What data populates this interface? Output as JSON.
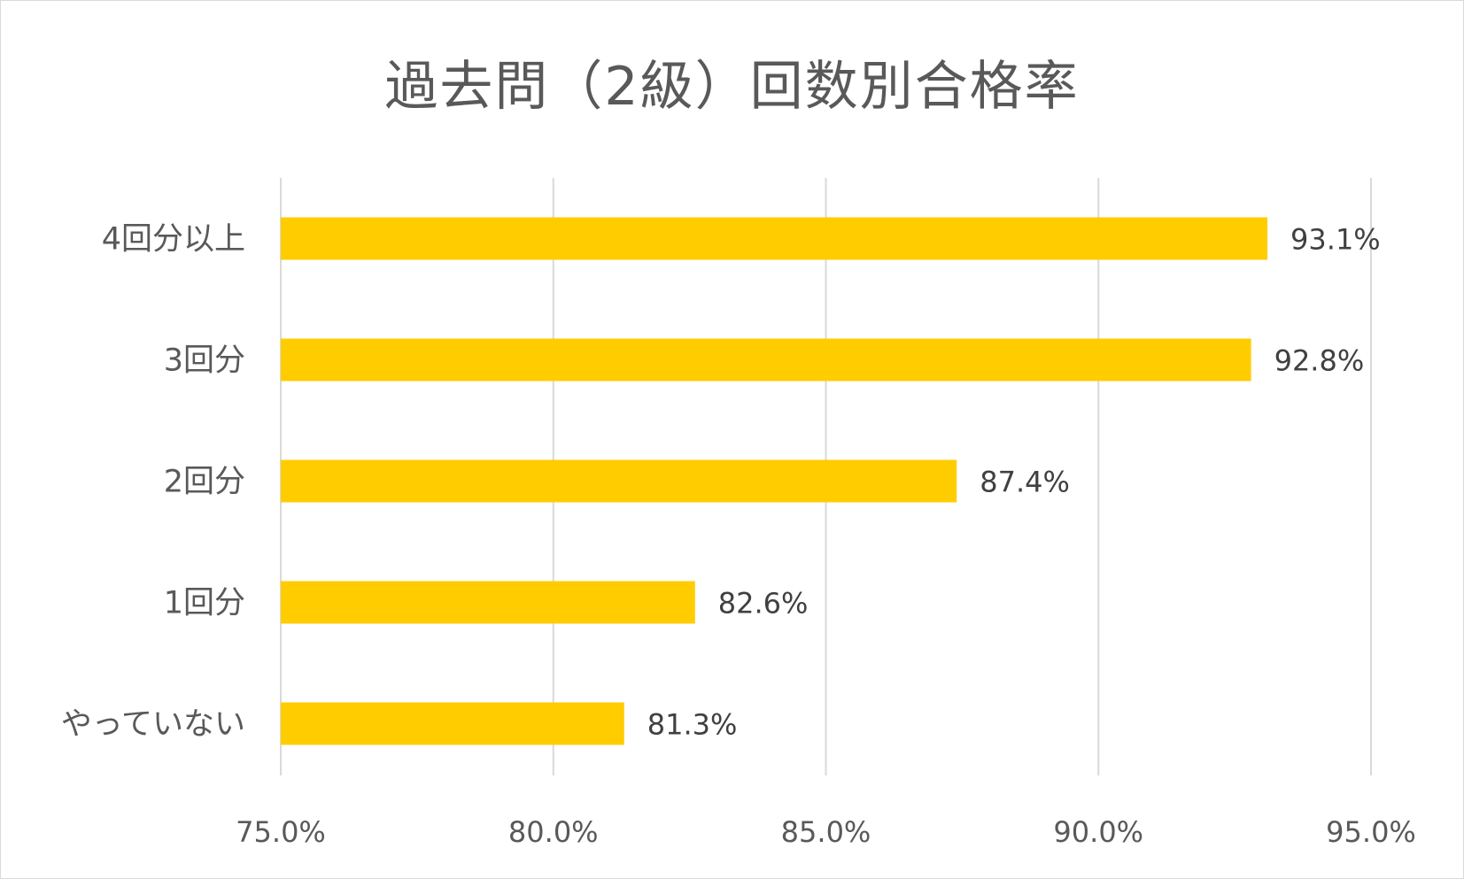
{
  "chart_data": {
    "type": "bar",
    "orientation": "horizontal",
    "title": "過去問（2級）回数別合格率",
    "categories": [
      "4回分以上",
      "3回分",
      "2回分",
      "1回分",
      "やっていない"
    ],
    "values": [
      93.1,
      92.8,
      87.4,
      82.6,
      81.3
    ],
    "value_labels": [
      "93.1%",
      "92.8%",
      "87.4%",
      "82.6%",
      "81.3%"
    ],
    "xlim": [
      75,
      95
    ],
    "x_ticks": [
      75,
      80,
      85,
      90,
      95
    ],
    "x_tick_labels": [
      "75.0%",
      "80.0%",
      "85.0%",
      "90.0%",
      "95.0%"
    ],
    "grid": true,
    "legend": "none",
    "bar_color": "#FFCC00",
    "grid_color": "#d9d9d9"
  }
}
